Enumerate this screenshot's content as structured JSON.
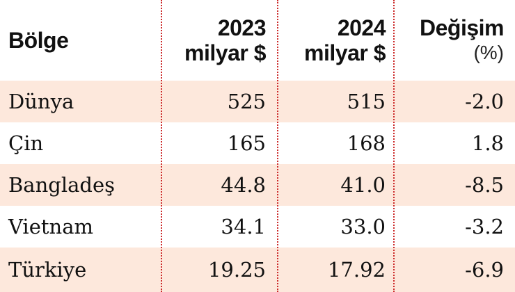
{
  "header": {
    "region": "Bölge",
    "col2023_year": "2023",
    "col2023_unit": "milyar $",
    "col2024_year": "2024",
    "col2024_unit": "milyar $",
    "change_label": "Değişim",
    "change_unit": "(%)"
  },
  "rows": [
    {
      "region": "Dünya",
      "v2023": "525",
      "v2024": "515",
      "change": "-2.0"
    },
    {
      "region": "Çin",
      "v2023": "165",
      "v2024": "168",
      "change": "1.8"
    },
    {
      "region": "Bangladeş",
      "v2023": "44.8",
      "v2024": "41.0",
      "change": "-8.5"
    },
    {
      "region": "Vietnam",
      "v2023": "34.1",
      "v2024": "33.0",
      "change": "-3.2"
    },
    {
      "region": "Türkiye",
      "v2023": "19.25",
      "v2024": "17.92",
      "change": "-6.9"
    }
  ],
  "colors": {
    "row_shade": "#fde8dc",
    "divider": "#cc2a2a"
  }
}
